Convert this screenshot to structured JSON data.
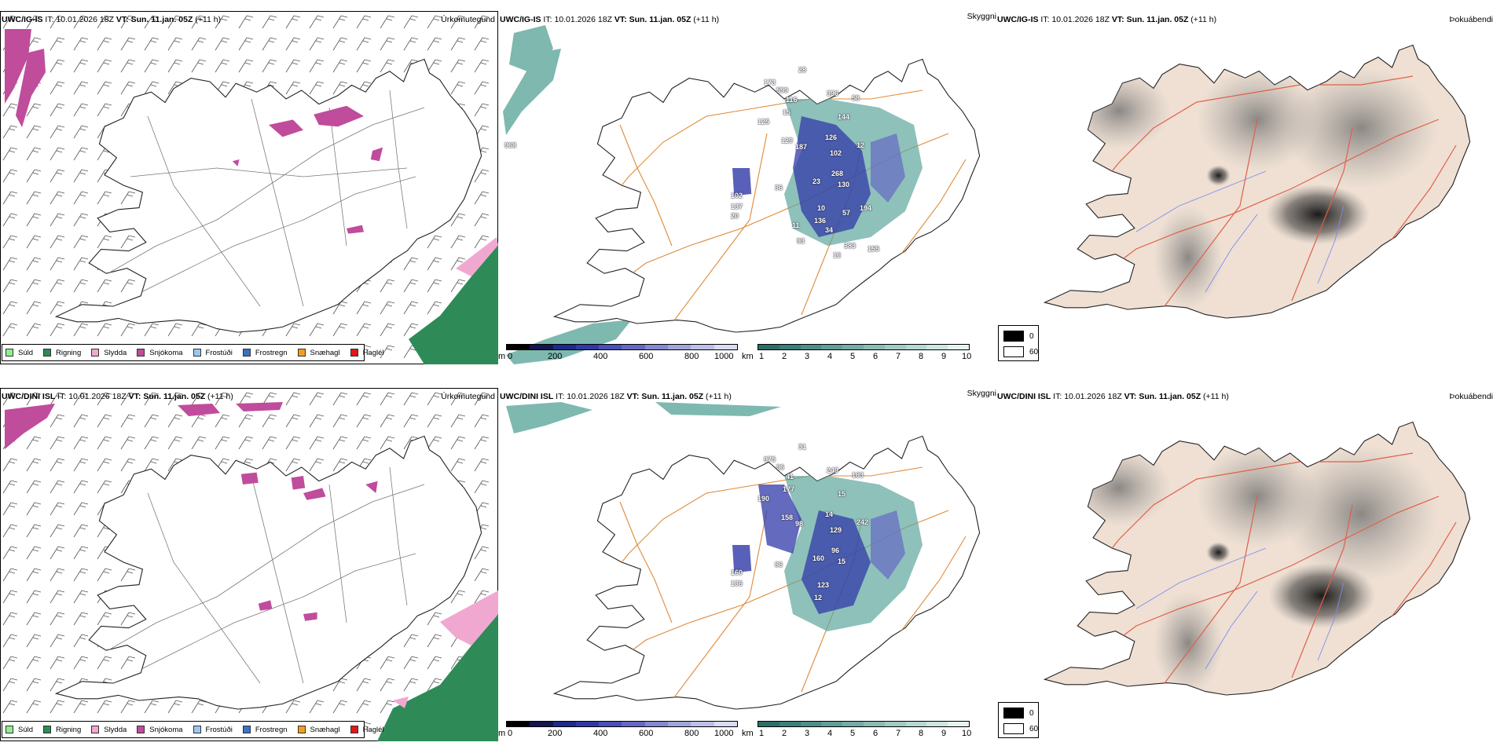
{
  "rows": [
    {
      "model_label": "UWC/IG-IS",
      "it_label": "IT:",
      "it_value": "10.01.2026 18Z",
      "vt_label": "VT:",
      "vt_value": "Sun. 11.jan. 05Z",
      "lead": "(+11 h)",
      "cloud_labels": [
        "173",
        "599",
        "28",
        "116",
        "396",
        "58",
        "144",
        "15",
        "125",
        "129",
        "187",
        "126",
        "102",
        "12",
        "268",
        "23",
        "130",
        "36",
        "102",
        "137",
        "10",
        "136",
        "57",
        "11",
        "34",
        "194",
        "93",
        "383",
        "155",
        "20",
        "16",
        "968"
      ]
    },
    {
      "model_label": "UWC/DINI ISL",
      "it_label": "IT:",
      "it_value": "10.01.2026 18Z",
      "vt_label": "VT:",
      "vt_value": "Sun. 11.jan. 05Z",
      "lead": "(+11 h)",
      "cloud_labels": [
        "975",
        "96",
        "31",
        "41",
        "249",
        "163",
        "15",
        "177",
        "190",
        "158",
        "98",
        "14",
        "129",
        "242",
        "96",
        "160",
        "15",
        "86",
        "160",
        "136",
        "123",
        "12"
      ]
    }
  ],
  "panel_titles": {
    "precip_type": "Úrkomutegund",
    "cloud": "Skyggni",
    "fog": "Þokuábendi"
  },
  "precip_legend": [
    {
      "label": "Súld",
      "color": "#90ee90"
    },
    {
      "label": "Rigning",
      "color": "#2e8b57"
    },
    {
      "label": "Slydda",
      "color": "#f0a8d0"
    },
    {
      "label": "Snjókoma",
      "color": "#c04c9c"
    },
    {
      "label": "Frostúði",
      "color": "#9cc8f0"
    },
    {
      "label": "Frostregn",
      "color": "#3a72c4"
    },
    {
      "label": "Snæhagl",
      "color": "#f0a020"
    },
    {
      "label": "Haglél",
      "color": "#e01818"
    }
  ],
  "cloudbase_bar": {
    "unit": "m",
    "ticks": [
      "0",
      "200",
      "400",
      "600",
      "800",
      "1000"
    ],
    "colors": [
      "#000000",
      "#141450",
      "#1c2a8c",
      "#3038a8",
      "#4a50b8",
      "#6668c4",
      "#8488d0",
      "#a0a4dc",
      "#bcc0e8",
      "#d8dcf4"
    ]
  },
  "visibility_bar": {
    "unit": "km",
    "ticks": [
      "1",
      "2",
      "3",
      "4",
      "5",
      "6",
      "7",
      "8",
      "9",
      "10"
    ],
    "colors": [
      "#2e6e6a",
      "#3b7f7a",
      "#4d8f88",
      "#609e97",
      "#74ada6",
      "#8abcb5",
      "#a0cac4",
      "#b6d8d2",
      "#cce5e0",
      "#e6f2f0"
    ]
  },
  "fog_legend": [
    {
      "label": "0",
      "color": "#000000"
    },
    {
      "label": "60",
      "color": "#ffffff"
    }
  ]
}
